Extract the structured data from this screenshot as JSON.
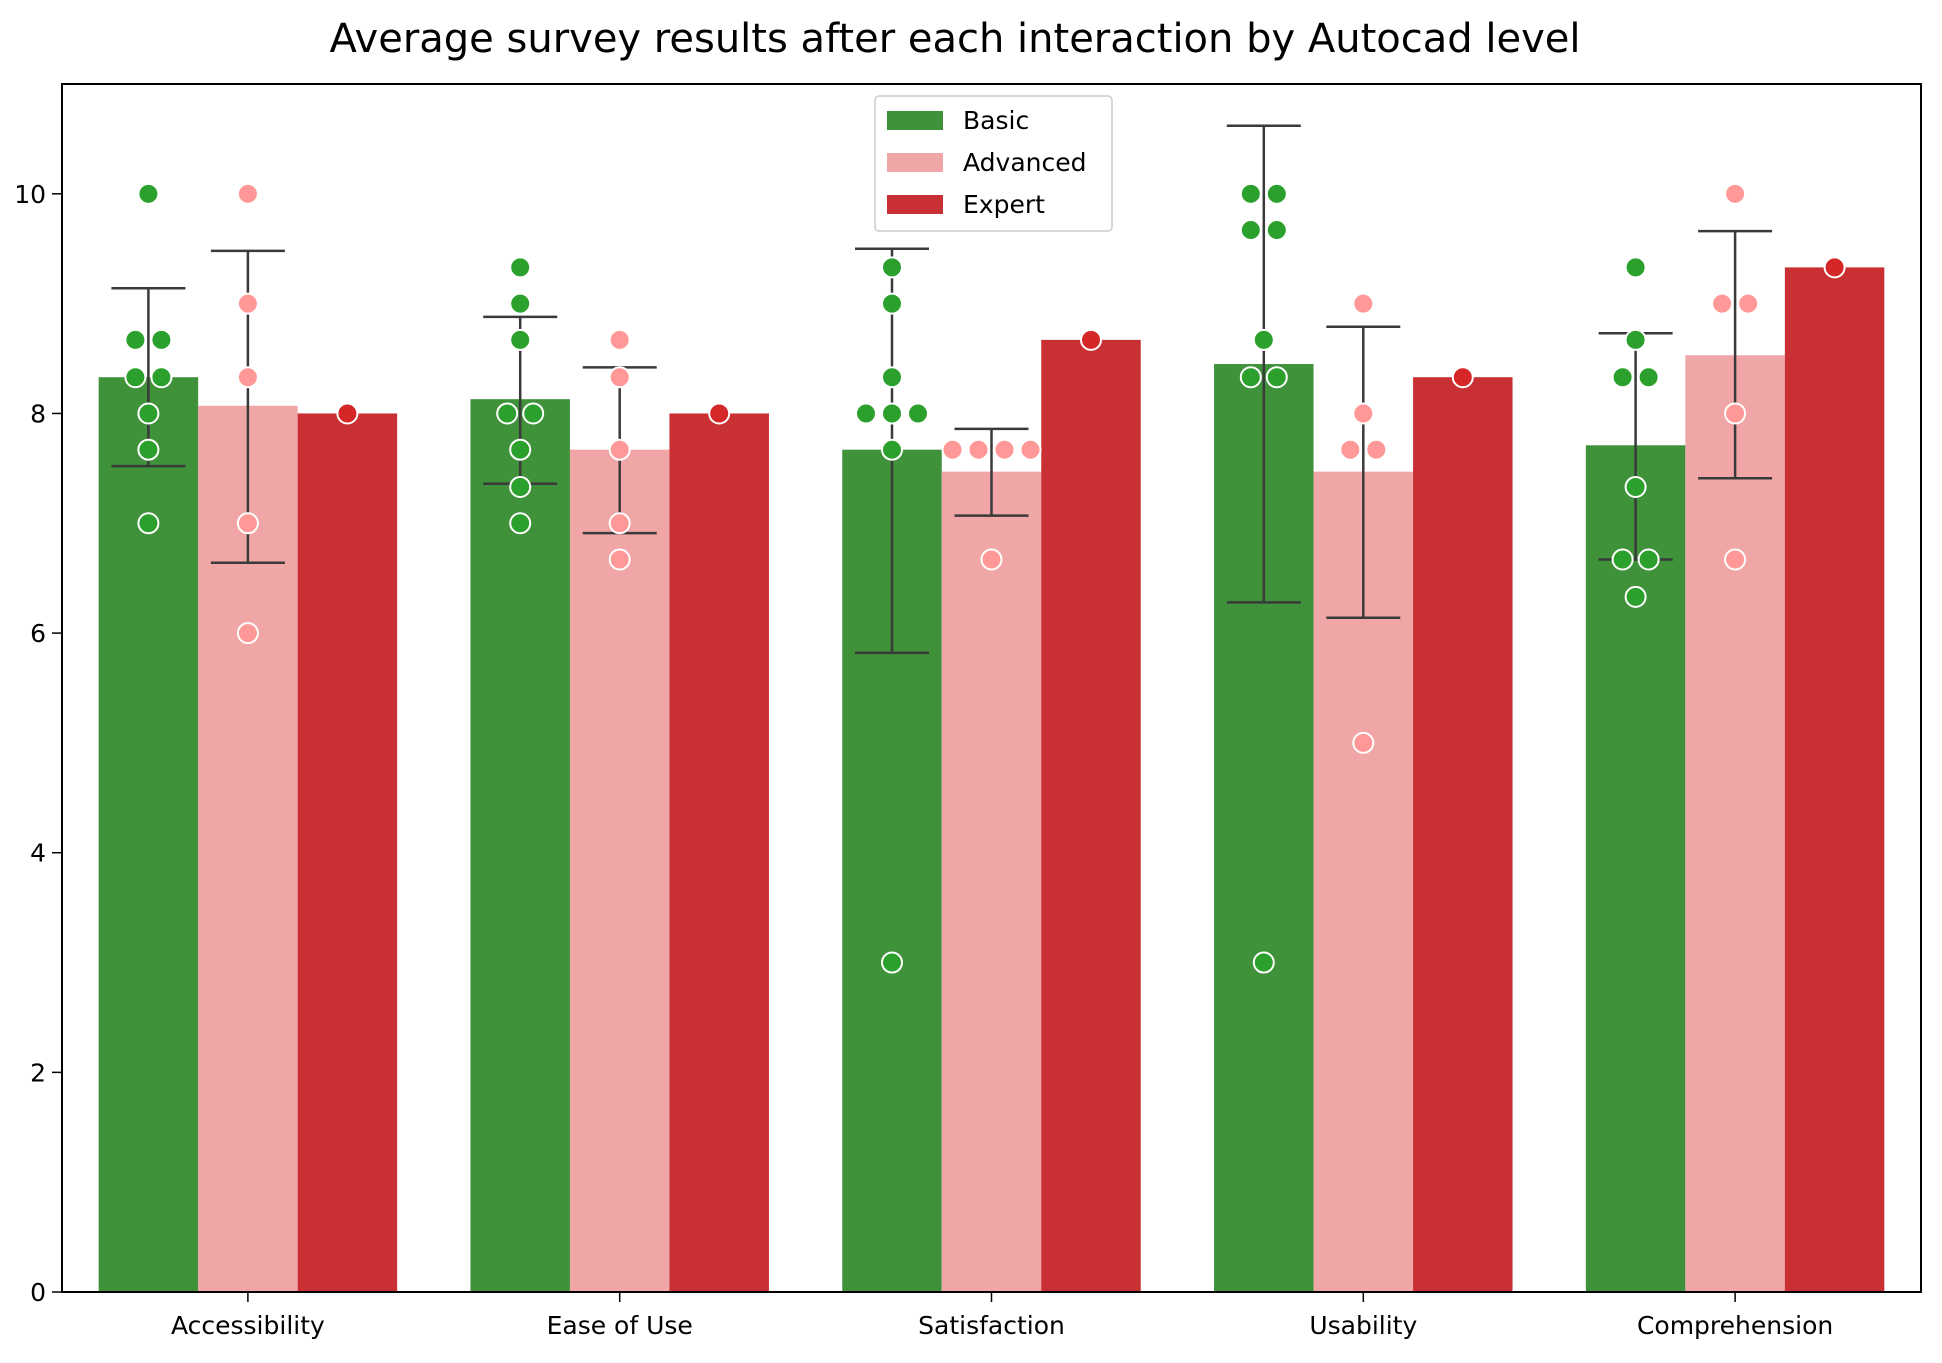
{
  "chart_data": {
    "type": "bar",
    "title": "Average survey results after each interaction by Autocad level",
    "xlabel": "",
    "ylabel": "",
    "ylim": [
      0,
      11
    ],
    "yticks": [
      0,
      2,
      4,
      6,
      8,
      10
    ],
    "grid": false,
    "legend_position": "top-center",
    "categories": [
      "Accessibility",
      "Ease of Use",
      "Satisfaction",
      "Usability",
      "Comprehension"
    ],
    "series": [
      {
        "name": "Basic",
        "bar_color": "#3f913a",
        "point_color": "#2ca02c",
        "values": [
          8.33,
          8.13,
          7.67,
          8.45,
          7.71
        ],
        "error_low": [
          7.52,
          7.36,
          5.82,
          6.28,
          6.67
        ],
        "error_high": [
          9.14,
          8.88,
          9.5,
          10.62,
          8.73
        ],
        "points": [
          [
            10,
            8.67,
            8.67,
            8.33,
            8.33,
            8.0,
            7.67,
            7.0
          ],
          [
            9.33,
            9.0,
            8.67,
            8.0,
            8.0,
            7.67,
            7.33,
            7.0
          ],
          [
            9.33,
            9.0,
            8.33,
            8.0,
            8.0,
            8.0,
            7.67,
            3.0
          ],
          [
            10,
            10,
            9.67,
            9.67,
            8.67,
            8.33,
            8.33,
            3.0
          ],
          [
            9.33,
            8.67,
            8.33,
            8.33,
            7.33,
            6.67,
            6.67,
            6.33
          ]
        ]
      },
      {
        "name": "Advanced",
        "bar_color": "#f0a6a6",
        "point_color": "#ff9896",
        "values": [
          8.07,
          7.67,
          7.47,
          7.47,
          8.53
        ],
        "error_low": [
          6.64,
          6.91,
          7.07,
          6.14,
          7.41
        ],
        "error_high": [
          9.48,
          8.42,
          7.86,
          8.79,
          9.66
        ],
        "points": [
          [
            10,
            9.0,
            8.33,
            7.0,
            6.0
          ],
          [
            8.67,
            8.33,
            7.67,
            7.0,
            6.67
          ],
          [
            7.67,
            7.67,
            7.67,
            7.67,
            6.67
          ],
          [
            9.0,
            8.0,
            7.67,
            7.67,
            5.0
          ],
          [
            10,
            9.0,
            9.0,
            8.0,
            6.67
          ]
        ]
      },
      {
        "name": "Expert",
        "bar_color": "#c93034",
        "point_color": "#d62728",
        "values": [
          8.0,
          8.0,
          8.67,
          8.33,
          9.33
        ],
        "points": [
          [
            8.0
          ],
          [
            8.0
          ],
          [
            8.67
          ],
          [
            8.33
          ],
          [
            9.33
          ]
        ]
      }
    ]
  }
}
